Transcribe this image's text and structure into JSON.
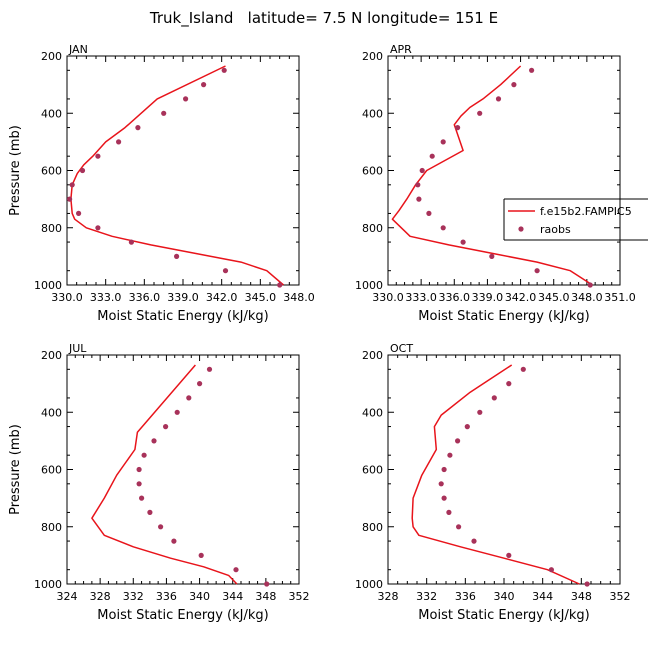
{
  "title": "Truk_Island   latitude= 7.5 N longitude= 151 E",
  "colors": {
    "model_line": "#e8141b",
    "obs_dots": "#a8325a",
    "frame": "#000000"
  },
  "legend": {
    "placement": "right of APR panel",
    "entries": [
      {
        "label": "f.e15b2.FAMPIC5",
        "style": "line"
      },
      {
        "label": "raobs",
        "style": "dot"
      }
    ]
  },
  "chart_data": [
    {
      "type": "line",
      "panel": "JAN",
      "xlabel": "Moist Static Energy (kJ/kg)",
      "ylabel": "Pressure (mb)",
      "xlim": [
        330,
        348
      ],
      "ylim": [
        200,
        1000
      ],
      "y_inverted": true,
      "xticks": [
        330,
        333,
        336,
        339,
        342,
        345,
        348
      ],
      "xtick_labels": [
        "330.0",
        "333.0",
        "336.0",
        "339.0",
        "342.0",
        "345.0",
        "348.0"
      ],
      "yticks": [
        200,
        400,
        600,
        800,
        1000
      ],
      "series": [
        {
          "name": "f.e15b2.FAMPIC5",
          "style": "line",
          "x": [
            342.3,
            337.0,
            334.5,
            333.0,
            332.0,
            331.3,
            330.8,
            330.4,
            330.3,
            330.4,
            330.6,
            331.5,
            333.5,
            336.5,
            340.0,
            343.5,
            345.5,
            346.8
          ],
          "y": [
            235,
            350,
            450,
            500,
            550,
            580,
            610,
            650,
            700,
            750,
            770,
            800,
            830,
            860,
            890,
            920,
            950,
            1000
          ]
        },
        {
          "name": "raobs",
          "style": "dots",
          "x": [
            342.2,
            340.6,
            339.2,
            337.5,
            335.5,
            334.0,
            332.4,
            331.2,
            330.4,
            330.2,
            330.9,
            332.4,
            335.0,
            338.5,
            342.3,
            346.5
          ],
          "y": [
            250,
            300,
            350,
            400,
            450,
            500,
            550,
            600,
            650,
            700,
            750,
            800,
            850,
            900,
            950,
            1000
          ]
        }
      ]
    },
    {
      "type": "line",
      "panel": "APR",
      "xlabel": "Moist Static Energy (kJ/kg)",
      "ylabel": "",
      "xlim": [
        330,
        351
      ],
      "ylim": [
        200,
        1000
      ],
      "y_inverted": true,
      "xticks": [
        330,
        333,
        336,
        339,
        342,
        345,
        348,
        351
      ],
      "xtick_labels": [
        "330.0",
        "333.0",
        "336.0",
        "339.0",
        "342.0",
        "345.0",
        "348.0",
        "351.0"
      ],
      "yticks": [
        200,
        400,
        600,
        800,
        1000
      ],
      "series": [
        {
          "name": "f.e15b2.FAMPIC5",
          "style": "line",
          "x": [
            342.0,
            340.2,
            338.6,
            337.4,
            336.6,
            336.0,
            336.8,
            333.5,
            332.5,
            331.7,
            331.0,
            330.4,
            332.0,
            335.5,
            339.5,
            343.5,
            346.5,
            348.5
          ],
          "y": [
            235,
            300,
            350,
            380,
            410,
            440,
            530,
            600,
            650,
            700,
            740,
            770,
            830,
            860,
            890,
            920,
            950,
            1000
          ]
        },
        {
          "name": "raobs",
          "style": "dots",
          "x": [
            343.0,
            341.4,
            340.0,
            338.3,
            336.3,
            335.0,
            334.0,
            333.1,
            332.7,
            332.8,
            333.7,
            335.0,
            336.8,
            339.4,
            343.5,
            348.3
          ],
          "y": [
            250,
            300,
            350,
            400,
            450,
            500,
            550,
            600,
            650,
            700,
            750,
            800,
            850,
            900,
            950,
            1000
          ]
        }
      ]
    },
    {
      "type": "line",
      "panel": "JUL",
      "xlabel": "Moist Static Energy (kJ/kg)",
      "ylabel": "Pressure (mb)",
      "xlim": [
        324,
        352
      ],
      "ylim": [
        200,
        1000
      ],
      "y_inverted": true,
      "xticks": [
        324,
        328,
        332,
        336,
        340,
        344,
        348,
        352
      ],
      "xtick_labels": [
        "324",
        "328",
        "332",
        "336",
        "340",
        "344",
        "348",
        "352"
      ],
      "yticks": [
        200,
        400,
        600,
        800,
        1000
      ],
      "series": [
        {
          "name": "f.e15b2.FAMPIC5",
          "style": "line",
          "x": [
            339.5,
            332.5,
            332.2,
            330.0,
            328.5,
            327.0,
            328.5,
            332.0,
            336.5,
            340.5,
            343.5,
            344.5
          ],
          "y": [
            235,
            470,
            530,
            620,
            700,
            770,
            830,
            870,
            910,
            940,
            970,
            1000
          ]
        },
        {
          "name": "raobs",
          "style": "dots",
          "x": [
            341.2,
            340.0,
            338.7,
            337.3,
            335.9,
            334.5,
            333.3,
            332.7,
            332.7,
            333.0,
            334.0,
            335.3,
            336.9,
            340.2,
            344.4,
            348.1
          ],
          "y": [
            250,
            300,
            350,
            400,
            450,
            500,
            550,
            600,
            650,
            700,
            750,
            800,
            850,
            900,
            950,
            1000
          ]
        }
      ]
    },
    {
      "type": "line",
      "panel": "OCT",
      "xlabel": "Moist Static Energy (kJ/kg)",
      "ylabel": "",
      "xlim": [
        328,
        352
      ],
      "ylim": [
        200,
        1000
      ],
      "y_inverted": true,
      "xticks": [
        328,
        332,
        336,
        340,
        344,
        348,
        352
      ],
      "xtick_labels": [
        "328",
        "332",
        "336",
        "340",
        "344",
        "348",
        "352"
      ],
      "yticks": [
        200,
        400,
        600,
        800,
        1000
      ],
      "series": [
        {
          "name": "f.e15b2.FAMPIC5",
          "style": "line",
          "x": [
            340.8,
            336.5,
            333.5,
            332.8,
            333.0,
            331.5,
            330.6,
            330.5,
            330.6,
            331.2,
            335.5,
            340.0,
            344.5,
            347.8
          ],
          "y": [
            235,
            330,
            410,
            450,
            530,
            620,
            700,
            770,
            800,
            830,
            870,
            910,
            950,
            1000
          ]
        },
        {
          "name": "raobs",
          "style": "dots",
          "x": [
            342.0,
            340.5,
            339.0,
            337.5,
            336.2,
            335.2,
            334.4,
            333.8,
            333.5,
            333.8,
            334.3,
            335.3,
            336.9,
            340.5,
            344.9,
            348.6
          ],
          "y": [
            250,
            300,
            350,
            400,
            450,
            500,
            550,
            600,
            650,
            700,
            750,
            800,
            850,
            900,
            950,
            1000
          ]
        }
      ]
    }
  ]
}
